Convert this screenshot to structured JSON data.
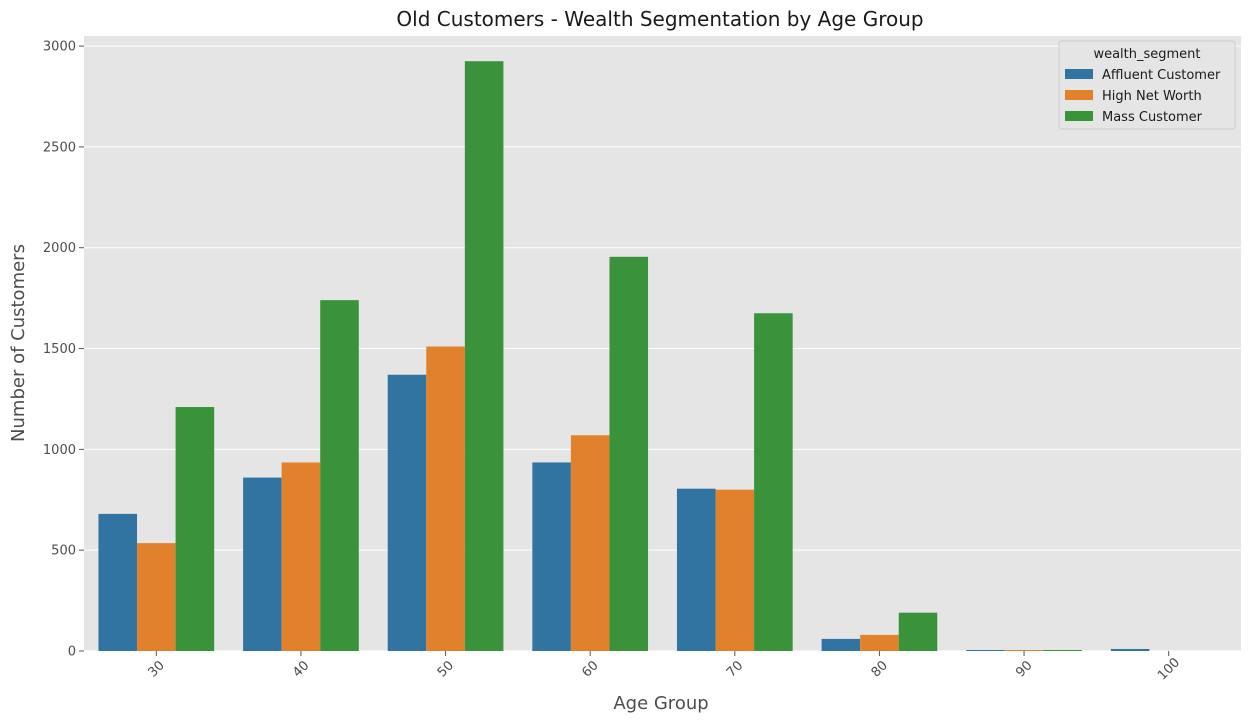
{
  "chart_data": {
    "type": "bar",
    "title": "Old Customers - Wealth Segmentation by Age Group",
    "xlabel": "Age Group",
    "ylabel": "Number of Customers",
    "categories": [
      "30",
      "40",
      "50",
      "60",
      "70",
      "80",
      "90",
      "100"
    ],
    "series": [
      {
        "name": "Affluent Customer",
        "color": "#3274a1",
        "values": [
          680,
          860,
          1370,
          935,
          805,
          60,
          5,
          10
        ]
      },
      {
        "name": "High Net Worth",
        "color": "#e1812c",
        "values": [
          535,
          935,
          1510,
          1070,
          800,
          80,
          5,
          0
        ]
      },
      {
        "name": "Mass Customer",
        "color": "#3a923a",
        "values": [
          1210,
          1740,
          2925,
          1955,
          1675,
          190,
          5,
          0
        ]
      }
    ],
    "ylim": [
      0,
      3050
    ],
    "yticks": [
      0,
      500,
      1000,
      1500,
      2000,
      2500,
      3000
    ],
    "legend": {
      "title": "wealth_segment",
      "placement": "top-right"
    },
    "grid": true,
    "background": "#e5e5e5",
    "xtick_rotation": 45
  }
}
